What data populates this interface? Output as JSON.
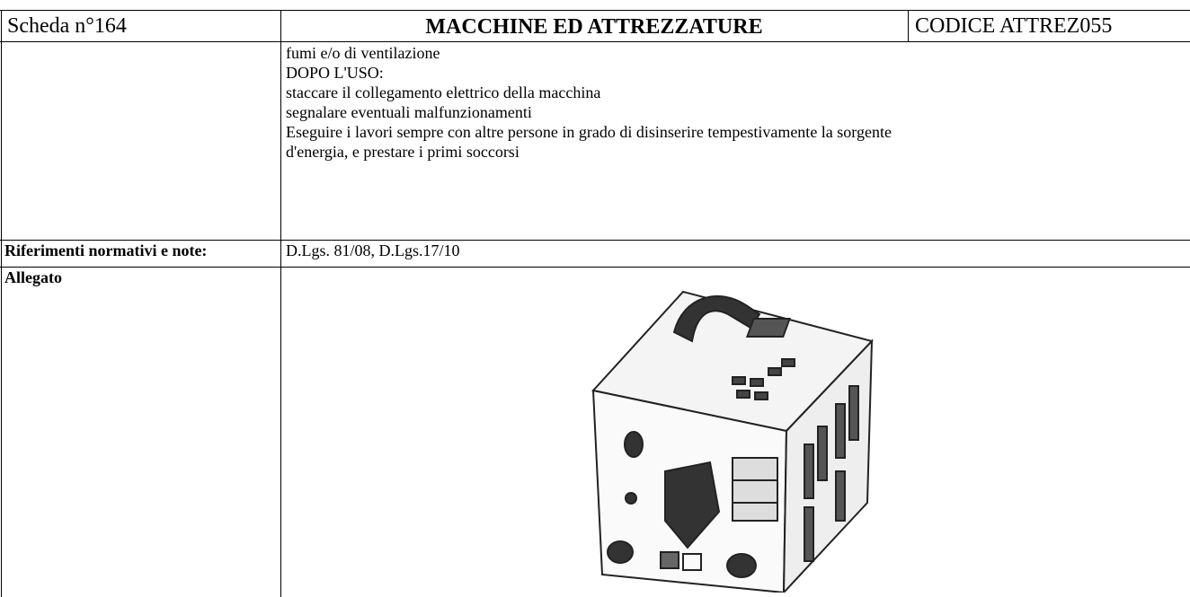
{
  "header": {
    "sheet": "Scheda n°164",
    "title": "MACCHINE ED ATTREZZATURE",
    "code": "CODICE ATTREZ055"
  },
  "body": {
    "lines": [
      "fumi e/o di ventilazione",
      "DOPO L'USO:",
      "staccare il collegamento elettrico della macchina",
      "segnalare eventuali malfunzionamenti",
      "Eseguire i lavori sempre con altre persone in grado di disinserire tempestivamente la sorgente",
      "d'energia, e prestare i primi soccorsi"
    ]
  },
  "references": {
    "label": "Riferimenti normativi e note:",
    "text": "D.Lgs. 81/08, D.Lgs.17/10"
  },
  "attachment": {
    "label": "Allegato"
  }
}
